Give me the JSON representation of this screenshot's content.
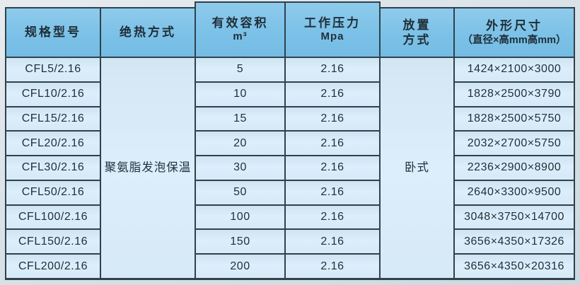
{
  "table": {
    "columns": [
      {
        "title": "规格型号",
        "sub": ""
      },
      {
        "title": "绝热方式",
        "sub": ""
      },
      {
        "title": "有效容积",
        "sub": "m³"
      },
      {
        "title": "工作压力",
        "sub": "Mpa"
      },
      {
        "title": "放置",
        "sub": "方式"
      },
      {
        "title": "外形尺寸",
        "sub": "（直径×高mm高mm）"
      }
    ],
    "merged": {
      "insulation": "聚氨脂发泡保温",
      "placement": "卧式"
    },
    "rows": [
      {
        "model": "CFL5/2.16",
        "volume": "5",
        "pressure": "2.16",
        "dimensions": "1424×2100×3000"
      },
      {
        "model": "CFL10/2.16",
        "volume": "10",
        "pressure": "2.16",
        "dimensions": "1828×2500×3790"
      },
      {
        "model": "CFL15/2.16",
        "volume": "15",
        "pressure": "2.16",
        "dimensions": "1828×2500×5750"
      },
      {
        "model": "CFL20/2.16",
        "volume": "20",
        "pressure": "2.16",
        "dimensions": "2032×2700×5750"
      },
      {
        "model": "CFL30/2.16",
        "volume": "30",
        "pressure": "2.16",
        "dimensions": "2236×2900×8900"
      },
      {
        "model": "CFL50/2.16",
        "volume": "50",
        "pressure": "2.16",
        "dimensions": "2640×3300×9500"
      },
      {
        "model": "CFL100/2.16",
        "volume": "100",
        "pressure": "2.16",
        "dimensions": "3048×3750×14700"
      },
      {
        "model": "CFL150/2.16",
        "volume": "150",
        "pressure": "2.16",
        "dimensions": "3656×4350×17326"
      },
      {
        "model": "CFL200/2.16",
        "volume": "200",
        "pressure": "2.16",
        "dimensions": "3656×4350×20316"
      }
    ],
    "colors": {
      "header_bg": "#7fc2e6",
      "body_bg": "#d9ebf8",
      "border": "#30414c"
    }
  }
}
